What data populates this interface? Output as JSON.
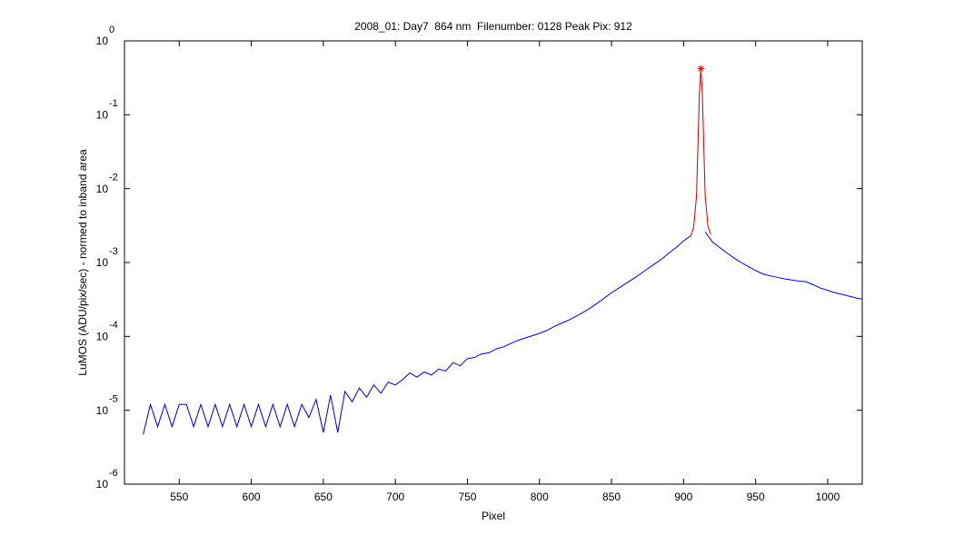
{
  "chart_data": {
    "type": "line",
    "title": "2008_01: Day7  864 nm  Filenumber: 0128 Peak Pix: 912",
    "xlabel": "Pixel",
    "ylabel": "LuMOS (ADU/pix/sec) - normed to inband area",
    "xlim": [
      512,
      1024
    ],
    "xticks": [
      550,
      600,
      650,
      700,
      750,
      800,
      850,
      900,
      950,
      1000
    ],
    "ylim": [
      1e-06,
      1
    ],
    "ylog": true,
    "yticks": [
      {
        "value": 1e-06,
        "label": "10",
        "exponent": "-6"
      },
      {
        "value": 1e-05,
        "label": "10",
        "exponent": "-5"
      },
      {
        "value": 0.0001,
        "label": "10",
        "exponent": "-4"
      },
      {
        "value": 0.001,
        "label": "10",
        "exponent": "-3"
      },
      {
        "value": 0.01,
        "label": "10",
        "exponent": "-2"
      },
      {
        "value": 0.1,
        "label": "10",
        "exponent": "-1"
      },
      {
        "value": 1,
        "label": "10",
        "exponent": "0"
      }
    ],
    "grid": false,
    "series": [
      {
        "color": "#0000cc",
        "x": [
          525,
          530,
          535,
          540,
          545,
          550,
          555,
          560,
          565,
          570,
          575,
          580,
          585,
          590,
          595,
          600,
          605,
          610,
          615,
          620,
          625,
          630,
          635,
          640,
          645,
          650,
          655,
          660,
          665,
          670,
          675,
          680,
          685,
          690,
          695,
          700,
          705,
          710,
          715,
          720,
          725,
          730,
          735,
          740,
          745,
          750,
          755,
          760,
          765,
          770,
          775,
          780,
          785,
          790,
          795,
          800,
          805,
          810,
          815,
          820,
          825,
          830,
          835,
          840,
          845,
          850,
          855,
          860,
          865,
          870,
          875,
          880,
          885,
          890,
          895,
          900,
          905,
          910,
          915,
          920,
          925,
          930,
          935,
          940,
          945,
          950,
          955,
          960,
          965,
          970,
          975,
          980,
          985,
          990,
          995,
          1000,
          1005,
          1010,
          1015,
          1020,
          1024
        ],
        "values": [
          4.7e-06,
          1.2e-05,
          6e-06,
          1.2e-05,
          6e-06,
          1.2e-05,
          1.2e-05,
          6e-06,
          1.2e-05,
          6e-06,
          1.2e-05,
          6e-06,
          1.2e-05,
          6e-06,
          1.2e-05,
          6e-06,
          1.2e-05,
          6e-06,
          1.2e-05,
          6e-06,
          1.2e-05,
          6e-06,
          1.2e-05,
          8e-06,
          1.4e-05,
          5e-06,
          1.6e-05,
          5e-06,
          1.8e-05,
          1.3e-05,
          2e-05,
          1.5e-05,
          2.2e-05,
          1.7e-05,
          2.4e-05,
          2.2e-05,
          2.6e-05,
          3.2e-05,
          2.8e-05,
          3.3e-05,
          3e-05,
          3.6e-05,
          3.4e-05,
          4.4e-05,
          4e-05,
          5e-05,
          5.2e-05,
          5.8e-05,
          6e-05,
          6.8e-05,
          7.2e-05,
          8e-05,
          8.8e-05,
          9.5e-05,
          0.000102,
          0.00011,
          0.00012,
          0.000135,
          0.00015,
          0.000165,
          0.000185,
          0.00021,
          0.00024,
          0.00028,
          0.00033,
          0.00039,
          0.00045,
          0.00052,
          0.0006,
          0.0007,
          0.00082,
          0.00096,
          0.00112,
          0.00135,
          0.0016,
          0.00196,
          0.0023,
          null,
          0.0026,
          0.0019,
          0.0016,
          0.00135,
          0.00115,
          0.001,
          0.00088,
          0.00078,
          0.0007,
          0.00066,
          0.00063,
          0.0006,
          0.00058,
          0.00056,
          0.00055,
          0.0005,
          0.00045,
          0.00042,
          0.00039,
          0.00037,
          0.00035,
          0.00033,
          0.00032
        ]
      },
      {
        "color": "#cc0000",
        "x": [
          905,
          907,
          909,
          910,
          911,
          912,
          913,
          914,
          915,
          917,
          919
        ],
        "values": [
          0.0023,
          0.003,
          0.008,
          0.04,
          0.2,
          0.42,
          0.2,
          0.04,
          0.008,
          0.003,
          0.0024
        ]
      },
      {
        "color": "#ff0000",
        "marker": "*",
        "x": [
          912
        ],
        "values": [
          0.42
        ]
      }
    ]
  }
}
